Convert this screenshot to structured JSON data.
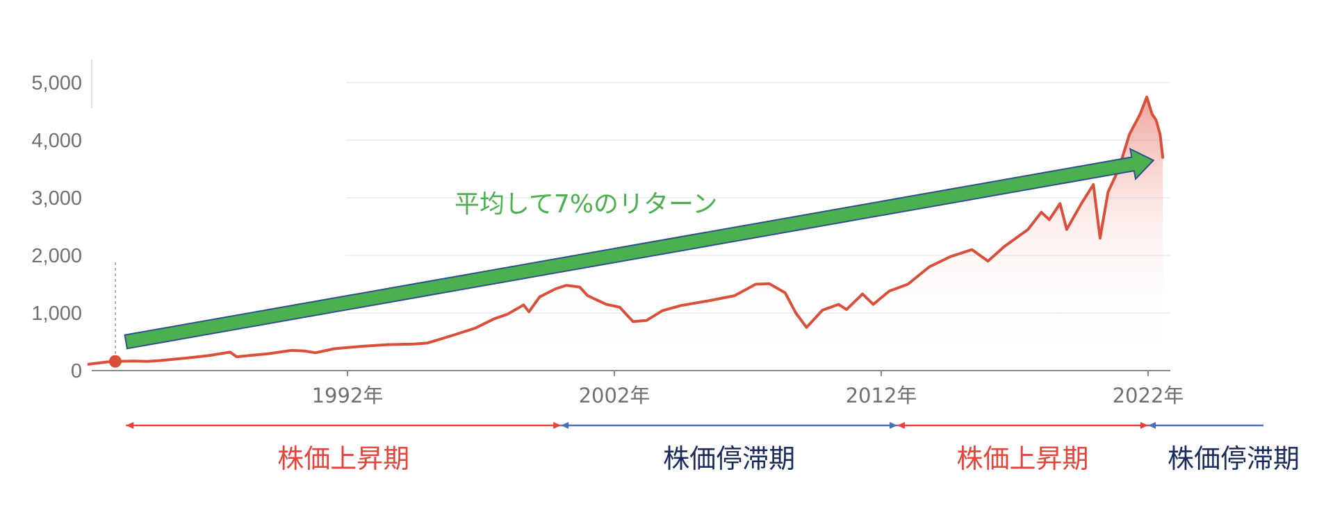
{
  "chart_data": {
    "type": "area",
    "title": "",
    "xlabel": "",
    "ylabel": "",
    "xlim": [
      1982.3,
      2022.55
    ],
    "ylim": [
      0,
      5000
    ],
    "y_ticks": [
      0,
      1000,
      2000,
      3000,
      4000,
      5000
    ],
    "y_tick_labels": [
      "0",
      "1,000",
      "2,000",
      "3,000",
      "4,000",
      "5,000"
    ],
    "x_ticks": [
      1992,
      2002,
      2012,
      2022
    ],
    "x_tick_labels": [
      "1992年",
      "2002年",
      "2012年",
      "2022年"
    ],
    "grid": true,
    "legend": "none",
    "series": [
      {
        "color": "#d9503a",
        "points": [
          [
            1982.3,
            110
          ],
          [
            1983.0,
            150
          ],
          [
            1983.3,
            160
          ],
          [
            1984.0,
            165
          ],
          [
            1984.5,
            160
          ],
          [
            1985.0,
            175
          ],
          [
            1986.0,
            220
          ],
          [
            1986.8,
            260
          ],
          [
            1987.6,
            320
          ],
          [
            1987.85,
            240
          ],
          [
            1988.5,
            270
          ],
          [
            1989.0,
            290
          ],
          [
            1989.9,
            350
          ],
          [
            1990.4,
            340
          ],
          [
            1990.8,
            310
          ],
          [
            1991.5,
            380
          ],
          [
            1992.5,
            420
          ],
          [
            1993.5,
            450
          ],
          [
            1994.5,
            460
          ],
          [
            1995.0,
            480
          ],
          [
            1995.5,
            550
          ],
          [
            1996.0,
            620
          ],
          [
            1996.8,
            740
          ],
          [
            1997.5,
            900
          ],
          [
            1998.0,
            980
          ],
          [
            1998.6,
            1140
          ],
          [
            1998.8,
            1020
          ],
          [
            1999.2,
            1280
          ],
          [
            1999.8,
            1420
          ],
          [
            2000.2,
            1480
          ],
          [
            2000.7,
            1450
          ],
          [
            2001.0,
            1300
          ],
          [
            2001.7,
            1150
          ],
          [
            2002.2,
            1100
          ],
          [
            2002.7,
            850
          ],
          [
            2003.2,
            870
          ],
          [
            2003.8,
            1040
          ],
          [
            2004.5,
            1130
          ],
          [
            2005.5,
            1210
          ],
          [
            2006.5,
            1300
          ],
          [
            2007.3,
            1500
          ],
          [
            2007.8,
            1510
          ],
          [
            2008.4,
            1350
          ],
          [
            2008.8,
            1000
          ],
          [
            2009.2,
            750
          ],
          [
            2009.8,
            1050
          ],
          [
            2010.4,
            1150
          ],
          [
            2010.7,
            1060
          ],
          [
            2011.3,
            1330
          ],
          [
            2011.7,
            1150
          ],
          [
            2012.3,
            1380
          ],
          [
            2013.0,
            1500
          ],
          [
            2013.8,
            1800
          ],
          [
            2014.6,
            1980
          ],
          [
            2015.4,
            2100
          ],
          [
            2016.0,
            1900
          ],
          [
            2016.6,
            2150
          ],
          [
            2017.5,
            2450
          ],
          [
            2018.0,
            2750
          ],
          [
            2018.3,
            2620
          ],
          [
            2018.7,
            2900
          ],
          [
            2018.95,
            2450
          ],
          [
            2019.5,
            2900
          ],
          [
            2019.95,
            3230
          ],
          [
            2020.2,
            2300
          ],
          [
            2020.5,
            3100
          ],
          [
            2020.9,
            3500
          ],
          [
            2021.3,
            4100
          ],
          [
            2021.7,
            4450
          ],
          [
            2021.95,
            4750
          ],
          [
            2022.15,
            4450
          ],
          [
            2022.3,
            4350
          ],
          [
            2022.45,
            4100
          ],
          [
            2022.55,
            3700
          ]
        ]
      }
    ],
    "highlight_point": {
      "x": 1983.3,
      "y": 160,
      "color": "#d9503a"
    },
    "trend_arrow": {
      "from": [
        1983.7,
        500
      ],
      "to": [
        2022.2,
        3650
      ],
      "color": "#4caf50",
      "outline": "#2f4f8f",
      "label": "平均して7%のリターン",
      "label_color": "#4caf50"
    },
    "periods": [
      {
        "label": "株価上昇期",
        "from": 1983.7,
        "to": 2000.0,
        "color": "#e8433a"
      },
      {
        "label": "株価停滞期",
        "from": 2000.0,
        "to": 2012.6,
        "color": "#4a6fb5",
        "text_color": "#1b2a5c"
      },
      {
        "label": "株価上昇期",
        "from": 2012.6,
        "to": 2022.0,
        "color": "#e8433a"
      },
      {
        "label": "株価停滞期",
        "from": 2022.0,
        "to": 2026.4,
        "color": "#4a6fb5",
        "text_color": "#1b2a5c"
      }
    ]
  }
}
